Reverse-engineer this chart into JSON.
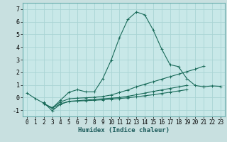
{
  "xlabel": "Humidex (Indice chaleur)",
  "xlim": [
    -0.5,
    23.5
  ],
  "ylim": [
    -1.5,
    7.5
  ],
  "yticks": [
    -1,
    0,
    1,
    2,
    3,
    4,
    5,
    6,
    7
  ],
  "xticks": [
    0,
    1,
    2,
    3,
    4,
    5,
    6,
    7,
    8,
    9,
    10,
    11,
    12,
    13,
    14,
    15,
    16,
    17,
    18,
    19,
    20,
    21,
    22,
    23
  ],
  "bg_color": "#c8e0e0",
  "plot_bg_color": "#c8e8e8",
  "grid_color": "#b0d8d8",
  "line_color": "#1a6b5a",
  "lines": [
    {
      "x": [
        0,
        1,
        2,
        3,
        4,
        5,
        6,
        7,
        8,
        9,
        10,
        11,
        12,
        13,
        14,
        15,
        16,
        17,
        18,
        19,
        20,
        21
      ],
      "y": [
        0.35,
        -0.08,
        -0.45,
        -0.85,
        -0.2,
        0.42,
        0.62,
        0.45,
        0.45,
        1.48,
        2.95,
        4.75,
        6.2,
        6.78,
        6.55,
        5.35,
        3.85,
        2.6,
        2.45,
        1.5,
        0.95,
        0.85
      ]
    },
    {
      "x": [
        2,
        3,
        4,
        5,
        6,
        7,
        8,
        9,
        10,
        11,
        12,
        13,
        14,
        15,
        16,
        17,
        18,
        19,
        20,
        21,
        22,
        23
      ],
      "y": [
        -0.5,
        -0.8,
        -0.35,
        -0.1,
        -0.05,
        -0.02,
        0.02,
        0.08,
        0.2,
        0.4,
        0.6,
        0.85,
        1.05,
        1.25,
        1.45,
        1.65,
        1.85,
        2.05,
        2.25,
        2.48,
        null,
        null
      ]
    },
    {
      "x": [
        2,
        3,
        4,
        5,
        6,
        7,
        8,
        9,
        10,
        11,
        12,
        13,
        14,
        15,
        16,
        17,
        18,
        19,
        20,
        21,
        22,
        23
      ],
      "y": [
        -0.5,
        -0.85,
        -0.5,
        -0.3,
        -0.25,
        -0.2,
        -0.15,
        -0.1,
        -0.05,
        0.0,
        0.1,
        0.22,
        0.35,
        0.48,
        0.6,
        0.72,
        0.84,
        0.96,
        null,
        0.85,
        0.92,
        0.88
      ]
    },
    {
      "x": [
        2,
        3,
        4,
        5,
        6,
        7,
        8,
        9,
        10,
        11,
        12,
        13,
        14,
        15,
        16,
        17,
        18,
        19
      ],
      "y": [
        -0.4,
        -1.05,
        -0.52,
        -0.32,
        -0.28,
        -0.25,
        -0.22,
        -0.18,
        -0.13,
        -0.08,
        -0.02,
        0.06,
        0.14,
        0.22,
        0.32,
        0.42,
        0.52,
        0.62
      ]
    }
  ]
}
